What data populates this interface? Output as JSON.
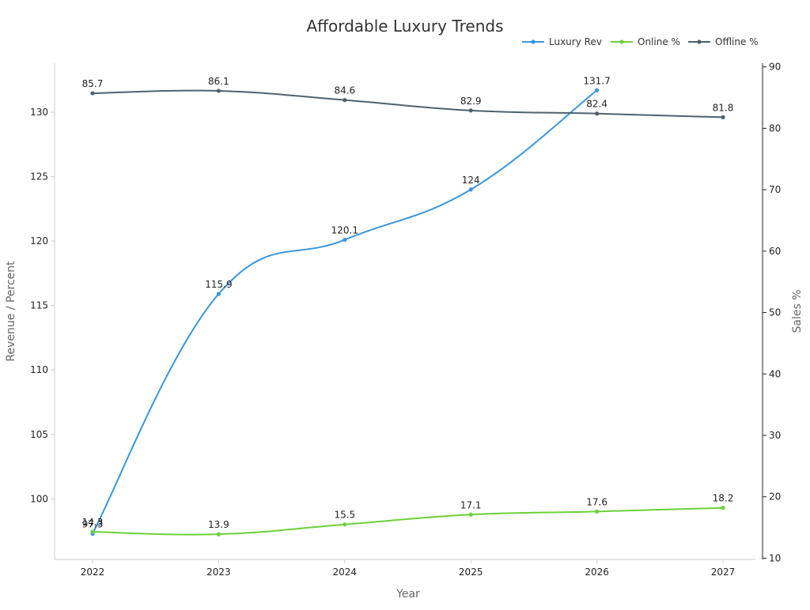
{
  "chart_data": {
    "type": "line",
    "title": "Affordable Luxury Trends",
    "xlabel": "Year",
    "ylabel_left": "Revenue / Percent",
    "ylabel_right": "Sales %",
    "categories": [
      "2022",
      "2023",
      "2024",
      "2025",
      "2026",
      "2027"
    ],
    "y_left": {
      "range": [
        95.3,
        133.8
      ],
      "ticks": [
        100,
        105,
        110,
        115,
        120,
        125,
        130
      ]
    },
    "y_right": {
      "range": [
        9.8,
        90.6
      ],
      "ticks": [
        10,
        20,
        30,
        40,
        50,
        60,
        70,
        80,
        90
      ]
    },
    "legend_position": "top-right",
    "grid": false,
    "series": [
      {
        "name": "Luxury Rev",
        "axis": "left",
        "color": "#3a96dd",
        "values": [
          97.3,
          115.9,
          120.1,
          124,
          131.7,
          null
        ],
        "labels": [
          "97.3",
          "115.9",
          "120.1",
          "124",
          "131.7",
          ""
        ]
      },
      {
        "name": "Online %",
        "axis": "right",
        "color": "#6cd13a",
        "values": [
          14.3,
          13.9,
          15.5,
          17.1,
          17.6,
          18.2
        ],
        "labels": [
          "14.3",
          "13.9",
          "15.5",
          "17.1",
          "17.6",
          "18.2"
        ]
      },
      {
        "name": "Offline %",
        "axis": "right",
        "color": "#4d626e",
        "values": [
          85.7,
          86.1,
          84.6,
          82.9,
          82.4,
          81.8
        ],
        "labels": [
          "85.7",
          "86.1",
          "84.6",
          "82.9",
          "82.4",
          "81.8"
        ]
      }
    ]
  }
}
